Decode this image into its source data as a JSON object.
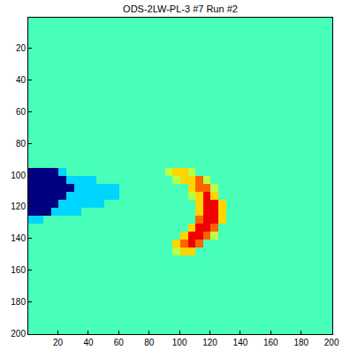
{
  "chart_data": {
    "type": "heatmap",
    "title": "ODS-2LW-PL-3 #7 Run #2",
    "color": "jet",
    "grid": false,
    "x": [
      3,
      8,
      13,
      18,
      23,
      28,
      33,
      38,
      43,
      48,
      53,
      58,
      63,
      68,
      73,
      78,
      83,
      88,
      93,
      98,
      103,
      108,
      113,
      118,
      123,
      128,
      133,
      138,
      143,
      148,
      153,
      158,
      163,
      168,
      173,
      178,
      183,
      188,
      193,
      198
    ],
    "y": [
      3,
      8,
      13,
      18,
      23,
      28,
      33,
      38,
      43,
      48,
      53,
      58,
      63,
      68,
      73,
      78,
      83,
      88,
      93,
      98,
      103,
      108,
      113,
      118,
      123,
      128,
      133,
      138,
      143,
      148,
      153,
      158,
      163,
      168,
      173,
      178,
      183,
      188,
      193,
      198
    ],
    "xlim": [
      0.5,
      200.5
    ],
    "ylim": [
      200.5,
      0.5
    ],
    "xticks": [
      20,
      40,
      60,
      80,
      100,
      120,
      140,
      160,
      180,
      200
    ],
    "yticks": [
      20,
      40,
      60,
      80,
      100,
      120,
      140,
      160,
      180,
      200
    ],
    "zlim": [
      0,
      9
    ],
    "values": [
      [
        4,
        4,
        4,
        4,
        4,
        4,
        4,
        4,
        4,
        4,
        4,
        4,
        4,
        4,
        4,
        4,
        4,
        4,
        4,
        4,
        4,
        4,
        4,
        4,
        4,
        4,
        4,
        4,
        4,
        4,
        4,
        4,
        4,
        4,
        4,
        4,
        4,
        4,
        4,
        4
      ],
      [
        4,
        4,
        4,
        4,
        4,
        4,
        4,
        4,
        4,
        4,
        4,
        4,
        4,
        4,
        4,
        4,
        4,
        4,
        4,
        4,
        4,
        4,
        4,
        4,
        4,
        4,
        4,
        4,
        4,
        4,
        4,
        4,
        4,
        4,
        4,
        4,
        4,
        4,
        4,
        4
      ],
      [
        4,
        4,
        4,
        4,
        4,
        4,
        4,
        4,
        4,
        4,
        4,
        4,
        4,
        4,
        4,
        4,
        4,
        4,
        4,
        4,
        4,
        4,
        4,
        4,
        4,
        4,
        4,
        4,
        4,
        4,
        4,
        4,
        4,
        4,
        4,
        4,
        4,
        4,
        4,
        4
      ],
      [
        4,
        4,
        4,
        4,
        4,
        4,
        4,
        4,
        4,
        4,
        4,
        4,
        4,
        4,
        4,
        4,
        4,
        4,
        4,
        4,
        4,
        4,
        4,
        4,
        4,
        4,
        4,
        4,
        4,
        4,
        4,
        4,
        4,
        4,
        4,
        4,
        4,
        4,
        4,
        4
      ],
      [
        4,
        4,
        4,
        4,
        4,
        4,
        4,
        4,
        4,
        4,
        4,
        4,
        4,
        4,
        4,
        4,
        4,
        4,
        4,
        4,
        4,
        4,
        4,
        4,
        4,
        4,
        4,
        4,
        4,
        4,
        4,
        4,
        4,
        4,
        4,
        4,
        4,
        4,
        4,
        4
      ],
      [
        4,
        4,
        4,
        4,
        4,
        4,
        4,
        4,
        4,
        4,
        4,
        4,
        4,
        4,
        4,
        4,
        4,
        4,
        4,
        4,
        4,
        4,
        4,
        4,
        4,
        4,
        4,
        4,
        4,
        4,
        4,
        4,
        4,
        4,
        4,
        4,
        4,
        4,
        4,
        4
      ],
      [
        4,
        4,
        4,
        4,
        4,
        4,
        4,
        4,
        4,
        4,
        4,
        4,
        4,
        4,
        4,
        4,
        4,
        4,
        4,
        4,
        4,
        4,
        4,
        4,
        4,
        4,
        4,
        4,
        4,
        4,
        4,
        4,
        4,
        4,
        4,
        4,
        4,
        4,
        4,
        4
      ],
      [
        4,
        4,
        4,
        4,
        4,
        4,
        4,
        4,
        4,
        4,
        4,
        4,
        4,
        4,
        4,
        4,
        4,
        4,
        4,
        4,
        4,
        4,
        4,
        4,
        4,
        4,
        4,
        4,
        4,
        4,
        4,
        4,
        4,
        4,
        4,
        4,
        4,
        4,
        4,
        4
      ],
      [
        4,
        4,
        4,
        4,
        4,
        4,
        4,
        4,
        4,
        4,
        4,
        4,
        4,
        4,
        4,
        4,
        4,
        4,
        4,
        4,
        4,
        4,
        4,
        4,
        4,
        4,
        4,
        4,
        4,
        4,
        4,
        4,
        4,
        4,
        4,
        4,
        4,
        4,
        4,
        4
      ],
      [
        4,
        4,
        4,
        4,
        4,
        4,
        4,
        4,
        4,
        4,
        4,
        4,
        4,
        4,
        4,
        4,
        4,
        4,
        4,
        4,
        4,
        4,
        4,
        4,
        4,
        4,
        4,
        4,
        4,
        4,
        4,
        4,
        4,
        4,
        4,
        4,
        4,
        4,
        4,
        4
      ],
      [
        4,
        4,
        4,
        4,
        4,
        4,
        4,
        4,
        4,
        4,
        4,
        4,
        4,
        4,
        4,
        4,
        4,
        4,
        4,
        4,
        4,
        4,
        4,
        4,
        4,
        4,
        4,
        4,
        4,
        4,
        4,
        4,
        4,
        4,
        4,
        4,
        4,
        4,
        4,
        4
      ],
      [
        4,
        4,
        4,
        4,
        4,
        4,
        4,
        4,
        4,
        4,
        4,
        4,
        4,
        4,
        4,
        4,
        4,
        4,
        4,
        4,
        4,
        4,
        4,
        4,
        4,
        4,
        4,
        4,
        4,
        4,
        4,
        4,
        4,
        4,
        4,
        4,
        4,
        4,
        4,
        4
      ],
      [
        4,
        4,
        4,
        4,
        4,
        4,
        4,
        4,
        4,
        4,
        4,
        4,
        4,
        4,
        4,
        4,
        4,
        4,
        4,
        4,
        4,
        4,
        4,
        4,
        4,
        4,
        4,
        4,
        4,
        4,
        4,
        4,
        4,
        4,
        4,
        4,
        4,
        4,
        4,
        4
      ],
      [
        4,
        4,
        4,
        4,
        4,
        4,
        4,
        4,
        4,
        4,
        4,
        4,
        4,
        4,
        4,
        4,
        4,
        4,
        4,
        4,
        4,
        4,
        4,
        4,
        4,
        4,
        4,
        4,
        4,
        4,
        4,
        4,
        4,
        4,
        4,
        4,
        4,
        4,
        4,
        4
      ],
      [
        4,
        4,
        4,
        4,
        4,
        4,
        4,
        4,
        4,
        4,
        4,
        4,
        4,
        4,
        4,
        4,
        4,
        4,
        4,
        4,
        4,
        4,
        4,
        4,
        4,
        4,
        4,
        4,
        4,
        4,
        4,
        4,
        4,
        4,
        4,
        4,
        4,
        4,
        4,
        4
      ],
      [
        4,
        4,
        4,
        4,
        4,
        4,
        4,
        4,
        4,
        4,
        4,
        4,
        4,
        4,
        4,
        4,
        4,
        4,
        4,
        4,
        4,
        4,
        4,
        4,
        4,
        4,
        4,
        4,
        4,
        4,
        4,
        4,
        4,
        4,
        4,
        4,
        4,
        4,
        4,
        4
      ],
      [
        4,
        4,
        4,
        4,
        4,
        4,
        4,
        4,
        4,
        4,
        4,
        4,
        4,
        4,
        4,
        4,
        4,
        4,
        4,
        4,
        4,
        4,
        4,
        4,
        4,
        4,
        4,
        4,
        4,
        4,
        4,
        4,
        4,
        4,
        4,
        4,
        4,
        4,
        4,
        4
      ],
      [
        4,
        4,
        4,
        4,
        4,
        4,
        4,
        4,
        4,
        4,
        4,
        4,
        4,
        4,
        4,
        4,
        4,
        4,
        4,
        4,
        4,
        4,
        4,
        4,
        4,
        4,
        4,
        4,
        4,
        4,
        4,
        4,
        4,
        4,
        4,
        4,
        4,
        4,
        4,
        4
      ],
      [
        4,
        4,
        4,
        4,
        4,
        4,
        4,
        4,
        4,
        4,
        4,
        4,
        4,
        4,
        4,
        4,
        4,
        4,
        4,
        4,
        4,
        4,
        4,
        4,
        4,
        4,
        4,
        4,
        4,
        4,
        4,
        4,
        4,
        4,
        4,
        4,
        4,
        4,
        4,
        4
      ],
      [
        0,
        0,
        0,
        0,
        3,
        4,
        4,
        4,
        4,
        4,
        4,
        4,
        4,
        4,
        4,
        4,
        4,
        4,
        5,
        6,
        6,
        5,
        4,
        4,
        4,
        4,
        4,
        4,
        4,
        4,
        4,
        4,
        4,
        4,
        4,
        4,
        4,
        4,
        4,
        4
      ],
      [
        0,
        0,
        0,
        0,
        0,
        3,
        3,
        3,
        3,
        4,
        4,
        4,
        4,
        4,
        4,
        4,
        4,
        4,
        4,
        5,
        6,
        6,
        7,
        5,
        4,
        4,
        4,
        4,
        4,
        4,
        4,
        4,
        4,
        4,
        4,
        4,
        4,
        4,
        4,
        4
      ],
      [
        0,
        0,
        0,
        0,
        0,
        0,
        3,
        3,
        3,
        3,
        3,
        3,
        4,
        4,
        4,
        4,
        4,
        4,
        4,
        4,
        4,
        6,
        7,
        7,
        5,
        4,
        4,
        4,
        4,
        4,
        4,
        4,
        4,
        4,
        4,
        4,
        4,
        4,
        4,
        4
      ],
      [
        0,
        0,
        0,
        0,
        0,
        3,
        3,
        3,
        3,
        3,
        3,
        3,
        4,
        4,
        4,
        4,
        4,
        4,
        4,
        4,
        4,
        5,
        6,
        8,
        6,
        4,
        4,
        4,
        4,
        4,
        4,
        4,
        4,
        4,
        4,
        4,
        4,
        4,
        4,
        4
      ],
      [
        0,
        0,
        0,
        0,
        3,
        3,
        3,
        3,
        3,
        3,
        4,
        4,
        4,
        4,
        4,
        4,
        4,
        4,
        4,
        4,
        4,
        4,
        6,
        8,
        8,
        6,
        4,
        4,
        4,
        4,
        4,
        4,
        4,
        4,
        4,
        4,
        4,
        4,
        4,
        4
      ],
      [
        0,
        0,
        0,
        3,
        3,
        3,
        3,
        4,
        4,
        4,
        4,
        4,
        4,
        4,
        4,
        4,
        4,
        4,
        4,
        4,
        4,
        4,
        6,
        8,
        8,
        6,
        4,
        4,
        4,
        4,
        4,
        4,
        4,
        4,
        4,
        4,
        4,
        4,
        4,
        4
      ],
      [
        3,
        3,
        4,
        4,
        4,
        4,
        4,
        4,
        4,
        4,
        4,
        4,
        4,
        4,
        4,
        4,
        4,
        4,
        4,
        4,
        4,
        4,
        7,
        8,
        8,
        6,
        4,
        4,
        4,
        4,
        4,
        4,
        4,
        4,
        4,
        4,
        4,
        4,
        4,
        4
      ],
      [
        4,
        4,
        4,
        4,
        4,
        4,
        4,
        4,
        4,
        4,
        4,
        4,
        4,
        4,
        4,
        4,
        4,
        4,
        4,
        4,
        4,
        6,
        8,
        8,
        7,
        4,
        4,
        4,
        4,
        4,
        4,
        4,
        4,
        4,
        4,
        4,
        4,
        4,
        4,
        4
      ],
      [
        4,
        4,
        4,
        4,
        4,
        4,
        4,
        4,
        4,
        4,
        4,
        4,
        4,
        4,
        4,
        4,
        4,
        4,
        4,
        4,
        6,
        8,
        8,
        7,
        5,
        4,
        4,
        4,
        4,
        4,
        4,
        4,
        4,
        4,
        4,
        4,
        4,
        4,
        4,
        4
      ],
      [
        4,
        4,
        4,
        4,
        4,
        4,
        4,
        4,
        4,
        4,
        4,
        4,
        4,
        4,
        4,
        4,
        4,
        4,
        4,
        6,
        7,
        8,
        7,
        4,
        4,
        4,
        4,
        4,
        4,
        4,
        4,
        4,
        4,
        4,
        4,
        4,
        4,
        4,
        4,
        4
      ],
      [
        4,
        4,
        4,
        4,
        4,
        4,
        4,
        4,
        4,
        4,
        4,
        4,
        4,
        4,
        4,
        4,
        4,
        4,
        4,
        5,
        6,
        6,
        4,
        4,
        4,
        4,
        4,
        4,
        4,
        4,
        4,
        4,
        4,
        4,
        4,
        4,
        4,
        4,
        4,
        4
      ],
      [
        4,
        4,
        4,
        4,
        4,
        4,
        4,
        4,
        4,
        4,
        4,
        4,
        4,
        4,
        4,
        4,
        4,
        4,
        4,
        4,
        4,
        4,
        4,
        4,
        4,
        4,
        4,
        4,
        4,
        4,
        4,
        4,
        4,
        4,
        4,
        4,
        4,
        4,
        4,
        4
      ],
      [
        4,
        4,
        4,
        4,
        4,
        4,
        4,
        4,
        4,
        4,
        4,
        4,
        4,
        4,
        4,
        4,
        4,
        4,
        4,
        4,
        4,
        4,
        4,
        4,
        4,
        4,
        4,
        4,
        4,
        4,
        4,
        4,
        4,
        4,
        4,
        4,
        4,
        4,
        4,
        4
      ],
      [
        4,
        4,
        4,
        4,
        4,
        4,
        4,
        4,
        4,
        4,
        4,
        4,
        4,
        4,
        4,
        4,
        4,
        4,
        4,
        4,
        4,
        4,
        4,
        4,
        4,
        4,
        4,
        4,
        4,
        4,
        4,
        4,
        4,
        4,
        4,
        4,
        4,
        4,
        4,
        4
      ],
      [
        4,
        4,
        4,
        4,
        4,
        4,
        4,
        4,
        4,
        4,
        4,
        4,
        4,
        4,
        4,
        4,
        4,
        4,
        4,
        4,
        4,
        4,
        4,
        4,
        4,
        4,
        4,
        4,
        4,
        4,
        4,
        4,
        4,
        4,
        4,
        4,
        4,
        4,
        4,
        4
      ],
      [
        4,
        4,
        4,
        4,
        4,
        4,
        4,
        4,
        4,
        4,
        4,
        4,
        4,
        4,
        4,
        4,
        4,
        4,
        4,
        4,
        4,
        4,
        4,
        4,
        4,
        4,
        4,
        4,
        4,
        4,
        4,
        4,
        4,
        4,
        4,
        4,
        4,
        4,
        4,
        4
      ],
      [
        4,
        4,
        4,
        4,
        4,
        4,
        4,
        4,
        4,
        4,
        4,
        4,
        4,
        4,
        4,
        4,
        4,
        4,
        4,
        4,
        4,
        4,
        4,
        4,
        4,
        4,
        4,
        4,
        4,
        4,
        4,
        4,
        4,
        4,
        4,
        4,
        4,
        4,
        4,
        4
      ],
      [
        4,
        4,
        4,
        4,
        4,
        4,
        4,
        4,
        4,
        4,
        4,
        4,
        4,
        4,
        4,
        4,
        4,
        4,
        4,
        4,
        4,
        4,
        4,
        4,
        4,
        4,
        4,
        4,
        4,
        4,
        4,
        4,
        4,
        4,
        4,
        4,
        4,
        4,
        4,
        4
      ],
      [
        4,
        4,
        4,
        4,
        4,
        4,
        4,
        4,
        4,
        4,
        4,
        4,
        4,
        4,
        4,
        4,
        4,
        4,
        4,
        4,
        4,
        4,
        4,
        4,
        4,
        4,
        4,
        4,
        4,
        4,
        4,
        4,
        4,
        4,
        4,
        4,
        4,
        4,
        4,
        4
      ],
      [
        4,
        4,
        4,
        4,
        4,
        4,
        4,
        4,
        4,
        4,
        4,
        4,
        4,
        4,
        4,
        4,
        4,
        4,
        4,
        4,
        4,
        4,
        4,
        4,
        4,
        4,
        4,
        4,
        4,
        4,
        4,
        4,
        4,
        4,
        4,
        4,
        4,
        4,
        4,
        4
      ],
      [
        4,
        4,
        4,
        4,
        4,
        4,
        4,
        4,
        4,
        4,
        4,
        4,
        4,
        4,
        4,
        4,
        4,
        4,
        4,
        4,
        4,
        4,
        4,
        4,
        4,
        4,
        4,
        4,
        4,
        4,
        4,
        4,
        4,
        4,
        4,
        4,
        4,
        4,
        4,
        4
      ]
    ]
  }
}
